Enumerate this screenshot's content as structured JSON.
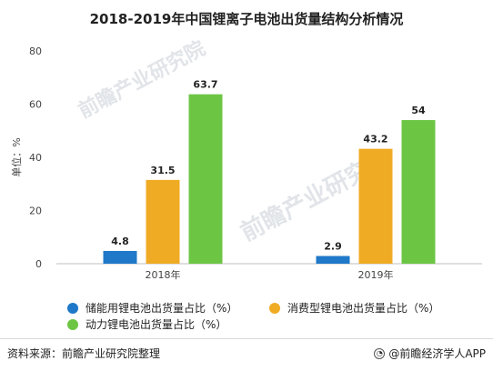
{
  "chart_data": {
    "type": "bar",
    "title": "2018-2019年中国锂离子电池出货量结构分析情况",
    "ylabel": "单位：%",
    "xlabel": "",
    "ylim": [
      0,
      80
    ],
    "yticks": [
      0,
      20,
      40,
      60,
      80
    ],
    "categories": [
      "2018年",
      "2019年"
    ],
    "series": [
      {
        "name": "储能用锂电池出货量占比（%）",
        "color": "#1f78c8",
        "values": [
          4.8,
          2.9
        ],
        "labels": [
          "4.8",
          "2.9"
        ]
      },
      {
        "name": "消费型锂电池出货量占比（%）",
        "color": "#f0ab24",
        "values": [
          31.5,
          43.2
        ],
        "labels": [
          "31.5",
          "43.2"
        ]
      },
      {
        "name": "动力锂电池出货量占比（%）",
        "color": "#6cc644",
        "values": [
          63.7,
          54
        ],
        "labels": [
          "63.7",
          "54"
        ]
      }
    ],
    "grid": false,
    "legend_position": "bottom"
  },
  "watermark": {
    "text1": "前瞻产业研究院",
    "text2": "前瞻产业研究院"
  },
  "footer": {
    "source": "资料来源：前瞻产业研究院整理",
    "brand": "@前瞻经济学人APP",
    "brand_icon": "qz-logo-icon"
  }
}
